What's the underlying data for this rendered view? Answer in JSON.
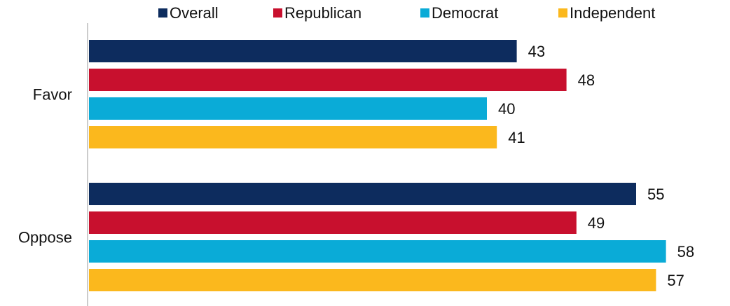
{
  "chart_data": {
    "type": "bar",
    "orientation": "horizontal",
    "categories": [
      "Favor",
      "Oppose"
    ],
    "series": [
      {
        "name": "Overall",
        "color": "#0d2c5e",
        "values": [
          43,
          55
        ]
      },
      {
        "name": "Republican",
        "color": "#c8102e",
        "values": [
          48,
          49
        ]
      },
      {
        "name": "Democrat",
        "color": "#0aabd7",
        "values": [
          40,
          58
        ]
      },
      {
        "name": "Independent",
        "color": "#fbb81d",
        "values": [
          41,
          57
        ]
      }
    ],
    "data_labels": true,
    "legend_position": "top",
    "grid": false,
    "xlim": [
      0,
      58
    ]
  }
}
